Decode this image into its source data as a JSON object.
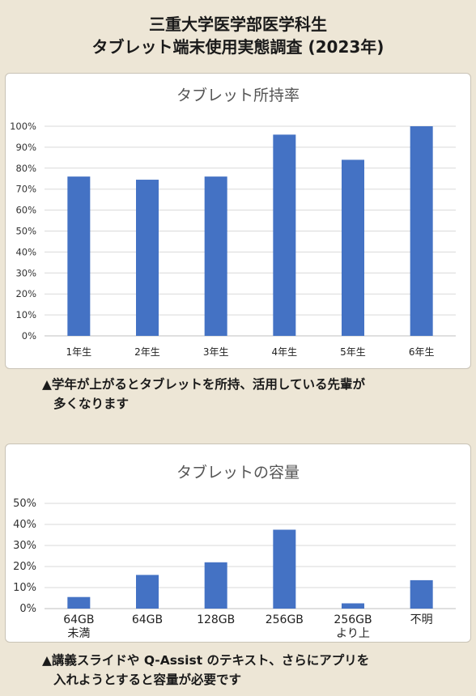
{
  "header": {
    "line1": "三重大学医学部医学科生",
    "line2": "タブレット端末使用実態調査 (2023年)"
  },
  "chart_data": [
    {
      "type": "bar",
      "title": "タブレット所持率",
      "categories": [
        "1年生",
        "2年生",
        "3年生",
        "4年生",
        "5年生",
        "6年生"
      ],
      "values": [
        76,
        74.5,
        76,
        96,
        84,
        100
      ],
      "ylim": [
        0,
        100
      ],
      "yticks": [
        "0%",
        "10%",
        "20%",
        "30%",
        "40%",
        "50%",
        "60%",
        "70%",
        "80%",
        "90%",
        "100%"
      ],
      "grid": true,
      "color": "#4472c4"
    },
    {
      "type": "bar",
      "title": "タブレットの容量",
      "categories": [
        [
          "64GB",
          "未満"
        ],
        [
          "64GB"
        ],
        [
          "128GB"
        ],
        [
          "256GB"
        ],
        [
          "256GB",
          "より上"
        ],
        [
          "不明"
        ]
      ],
      "values": [
        5.5,
        16,
        22,
        37.5,
        2.5,
        13.5
      ],
      "ylim": [
        0,
        50
      ],
      "yticks": [
        "0%",
        "10%",
        "20%",
        "30%",
        "40%",
        "50%"
      ],
      "grid": true,
      "color": "#4472c4"
    }
  ],
  "captions": {
    "c1_line1": "▲学年が上がるとタブレットを所持、活用している先輩が",
    "c1_line2": "多くなります",
    "c2_line1": "▲講義スライドや Q-Assist のテキスト、さらにアプリを",
    "c2_line2": "入れようとすると容量が必要です"
  }
}
